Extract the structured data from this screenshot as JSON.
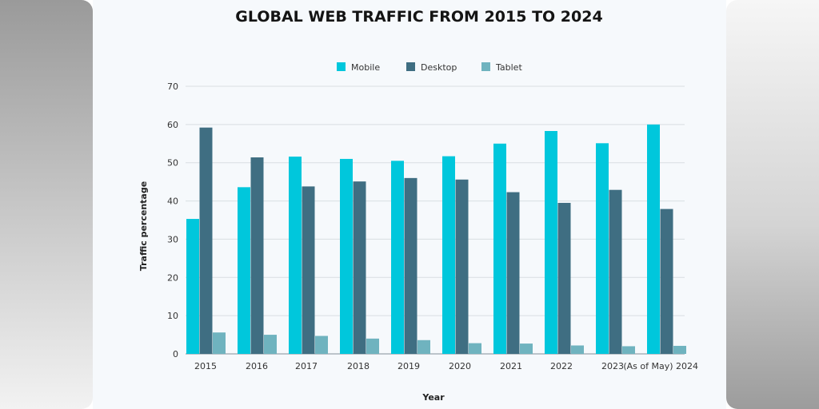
{
  "chart_data": {
    "type": "bar",
    "title": "GLOBAL WEB TRAFFIC FROM 2015 TO 2024",
    "xlabel": "Year",
    "ylabel": "Traffic percentage",
    "categories": [
      "2015",
      "2016",
      "2017",
      "2018",
      "2019",
      "2020",
      "2021",
      "2022",
      "2023",
      "(As of May) 2024"
    ],
    "series": [
      {
        "name": "Mobile",
        "color": "#00c7dc",
        "values": [
          35.3,
          43.6,
          51.6,
          51.0,
          50.5,
          51.7,
          55.0,
          58.3,
          55.1,
          60.0
        ]
      },
      {
        "name": "Desktop",
        "color": "#3f6e82",
        "values": [
          59.2,
          51.4,
          43.8,
          45.1,
          46.0,
          45.6,
          42.3,
          39.5,
          42.9,
          37.9
        ]
      },
      {
        "name": "Tablet",
        "color": "#6fb3bf",
        "values": [
          5.6,
          5.0,
          4.7,
          4.0,
          3.6,
          2.8,
          2.7,
          2.2,
          2.0,
          2.1
        ]
      }
    ],
    "ylim": [
      0,
      70
    ],
    "yticks": [
      0,
      10,
      20,
      30,
      40,
      50,
      60,
      70
    ],
    "grid": true,
    "legend_position": "top-center"
  }
}
